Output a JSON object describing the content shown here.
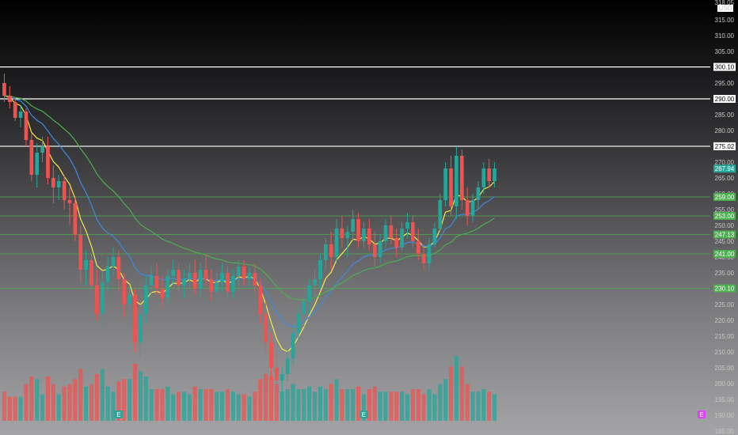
{
  "chart_data": {
    "type": "candlestick",
    "currency": "USD",
    "ylim": [
      185,
      320
    ],
    "y_ticks": [
      315,
      310,
      305,
      300,
      295,
      290,
      285,
      280,
      275,
      270,
      265,
      260,
      255,
      250,
      245,
      240,
      235,
      230,
      225,
      220,
      215,
      210,
      205,
      200,
      195,
      190,
      185
    ],
    "y_top_label": "318.05",
    "last_price": "267.94",
    "horizontal_levels": [
      {
        "value": 300.1,
        "label": "300.10",
        "style": "white"
      },
      {
        "value": 290.0,
        "label": "290.00",
        "style": "white"
      },
      {
        "value": 275.02,
        "label": "275.02",
        "style": "white"
      },
      {
        "value": 259.0,
        "label": "259.00",
        "style": "green"
      },
      {
        "value": 253.0,
        "label": "253.00",
        "style": "green"
      },
      {
        "value": 247.13,
        "label": "247.13",
        "style": "green"
      },
      {
        "value": 241.0,
        "label": "241.00",
        "style": "green"
      },
      {
        "value": 230.1,
        "label": "230.10",
        "style": "green"
      }
    ],
    "earnings_markers": [
      {
        "label": "E",
        "candle_index": 21,
        "color": "#26a69a"
      },
      {
        "label": "E",
        "candle_index": 66,
        "color": "#26a69a"
      },
      {
        "label": "E",
        "candle_index": 150,
        "color": "#e040fb"
      }
    ],
    "candles": [
      [
        295,
        298,
        289,
        291
      ],
      [
        291,
        294,
        287,
        289
      ],
      [
        289,
        290,
        283,
        284
      ],
      [
        284,
        288,
        281,
        286
      ],
      [
        286,
        287,
        275,
        277
      ],
      [
        277,
        279,
        264,
        266
      ],
      [
        266,
        276,
        262,
        273
      ],
      [
        273,
        278,
        270,
        275
      ],
      [
        275,
        278,
        263,
        265
      ],
      [
        265,
        269,
        257,
        262
      ],
      [
        262,
        266,
        258,
        264
      ],
      [
        264,
        266,
        255,
        258
      ],
      [
        258,
        262,
        250,
        257
      ],
      [
        257,
        259,
        245,
        247
      ],
      [
        247,
        250,
        232,
        236
      ],
      [
        236,
        242,
        231,
        239
      ],
      [
        239,
        241,
        229,
        231
      ],
      [
        231,
        236,
        220,
        222
      ],
      [
        222,
        235,
        217,
        232
      ],
      [
        232,
        240,
        229,
        237
      ],
      [
        237,
        243,
        234,
        240
      ],
      [
        240,
        242,
        229,
        233
      ],
      [
        233,
        235,
        221,
        225
      ],
      [
        225,
        231,
        217,
        228
      ],
      [
        228,
        230,
        210,
        213
      ],
      [
        213,
        225,
        208,
        222
      ],
      [
        222,
        234,
        219,
        231
      ],
      [
        231,
        237,
        227,
        234
      ],
      [
        234,
        238,
        228,
        230
      ],
      [
        230,
        234,
        224,
        227
      ],
      [
        227,
        236,
        225,
        234
      ],
      [
        234,
        239,
        231,
        236
      ],
      [
        236,
        238,
        229,
        231
      ],
      [
        231,
        236,
        227,
        233
      ],
      [
        233,
        238,
        230,
        235
      ],
      [
        235,
        239,
        228,
        230
      ],
      [
        230,
        238,
        228,
        236
      ],
      [
        236,
        241,
        231,
        233
      ],
      [
        233,
        236,
        226,
        229
      ],
      [
        229,
        235,
        226,
        232
      ],
      [
        232,
        238,
        229,
        235
      ],
      [
        235,
        237,
        227,
        229
      ],
      [
        229,
        236,
        227,
        234
      ],
      [
        234,
        239,
        231,
        237
      ],
      [
        237,
        239,
        231,
        233
      ],
      [
        233,
        237,
        230,
        235
      ],
      [
        235,
        238,
        229,
        231
      ],
      [
        231,
        233,
        219,
        222
      ],
      [
        222,
        226,
        210,
        213
      ],
      [
        213,
        216,
        201,
        205
      ],
      [
        205,
        210,
        198,
        201
      ],
      [
        201,
        205,
        196,
        203
      ],
      [
        203,
        211,
        201,
        208
      ],
      [
        208,
        218,
        206,
        216
      ],
      [
        216,
        224,
        214,
        222
      ],
      [
        222,
        228,
        218,
        226
      ],
      [
        226,
        233,
        222,
        231
      ],
      [
        231,
        236,
        227,
        233
      ],
      [
        233,
        241,
        230,
        239
      ],
      [
        239,
        246,
        236,
        244
      ],
      [
        244,
        248,
        236,
        240
      ],
      [
        240,
        252,
        238,
        249
      ],
      [
        249,
        253,
        243,
        246
      ],
      [
        246,
        250,
        240,
        248
      ],
      [
        248,
        255,
        245,
        252
      ],
      [
        252,
        254,
        243,
        245
      ],
      [
        245,
        251,
        243,
        249
      ],
      [
        249,
        252,
        242,
        244
      ],
      [
        244,
        248,
        237,
        240
      ],
      [
        240,
        247,
        238,
        245
      ],
      [
        245,
        252,
        243,
        250
      ],
      [
        250,
        253,
        244,
        246
      ],
      [
        246,
        249,
        240,
        243
      ],
      [
        243,
        251,
        242,
        249
      ],
      [
        249,
        254,
        246,
        251
      ],
      [
        251,
        253,
        243,
        245
      ],
      [
        245,
        249,
        239,
        241
      ],
      [
        241,
        244,
        236,
        238
      ],
      [
        238,
        246,
        236,
        244
      ],
      [
        244,
        251,
        243,
        249
      ],
      [
        249,
        260,
        248,
        258
      ],
      [
        258,
        270,
        256,
        268
      ],
      [
        268,
        272,
        253,
        256
      ],
      [
        256,
        275,
        252,
        272
      ],
      [
        272,
        274,
        255,
        258
      ],
      [
        258,
        262,
        250,
        253
      ],
      [
        253,
        260,
        251,
        258
      ],
      [
        258,
        264,
        255,
        262
      ],
      [
        262,
        270,
        260,
        268
      ],
      [
        268,
        271,
        262,
        264
      ],
      [
        264,
        270,
        262,
        268
      ]
    ],
    "ema_fast_color": "#f5e94b",
    "ema_mid_color": "#3d8be0",
    "ema_slow_color": "#4caf50",
    "bull_color": "#26a69a",
    "bear_color": "#ef5350"
  }
}
